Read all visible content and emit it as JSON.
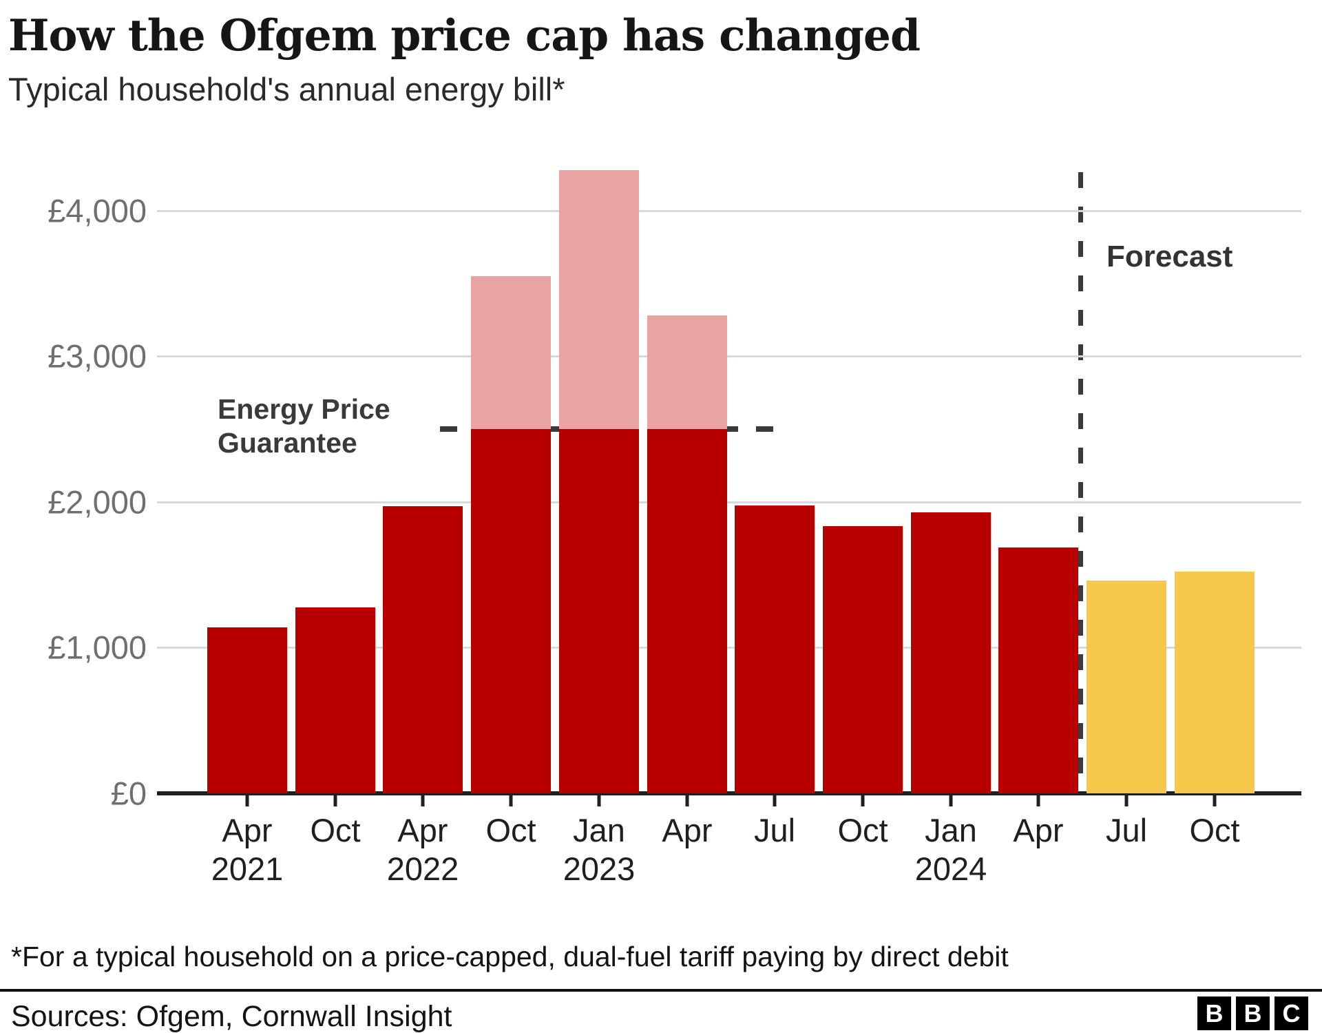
{
  "header": {
    "title": "How the Ofgem price cap has changed",
    "subtitle": "Typical household's annual energy bill*"
  },
  "chart_data": {
    "type": "bar",
    "title": "How the Ofgem price cap has changed",
    "subtitle": "Typical household's annual energy bill*",
    "ylim": [
      0,
      4300
    ],
    "grid": "horizontal",
    "yticks": [
      {
        "value": 0,
        "label": "£0"
      },
      {
        "value": 1000,
        "label": "£1,000"
      },
      {
        "value": 2000,
        "label": "£2,000"
      },
      {
        "value": 3000,
        "label": "£3,000"
      },
      {
        "value": 4000,
        "label": "£4,000"
      }
    ],
    "points": [
      {
        "month": "Apr",
        "year": "2021",
        "cap": 1138,
        "charged": 1138,
        "status": "actual"
      },
      {
        "month": "Oct",
        "cap": 1277,
        "charged": 1277,
        "status": "actual"
      },
      {
        "month": "Apr",
        "year": "2022",
        "cap": 1971,
        "charged": 1971,
        "status": "actual"
      },
      {
        "month": "Oct",
        "cap": 3549,
        "charged": 2500,
        "status": "actual",
        "epg_capped": true
      },
      {
        "month": "Jan",
        "year": "2023",
        "cap": 4279,
        "charged": 2500,
        "status": "actual",
        "epg_capped": true
      },
      {
        "month": "Apr",
        "cap": 3280,
        "charged": 2500,
        "status": "actual",
        "epg_capped": true
      },
      {
        "month": "Jul",
        "cap": 1976,
        "charged": 1976,
        "status": "actual"
      },
      {
        "month": "Oct",
        "cap": 1834,
        "charged": 1834,
        "status": "actual"
      },
      {
        "month": "Jan",
        "year": "2024",
        "cap": 1928,
        "charged": 1928,
        "status": "actual"
      },
      {
        "month": "Apr",
        "cap": 1690,
        "charged": 1690,
        "status": "actual"
      },
      {
        "month": "Jul",
        "cap": 1462,
        "charged": 1462,
        "status": "forecast"
      },
      {
        "month": "Oct",
        "cap": 1521,
        "charged": 1521,
        "status": "forecast"
      }
    ],
    "annotations": {
      "epg_line": {
        "value": 2500,
        "label": "Energy Price\nGuarantee"
      },
      "forecast_divider": {
        "before_index": 10,
        "label": "Forecast"
      }
    },
    "legend_position": "none",
    "colors": {
      "actual": "#B80000",
      "cap_excess": "#EAA3A3",
      "forecast": "#F6C84C",
      "annotation": "#3A3A3A",
      "gridline": "#D9D9D9",
      "axis": "#1F1F1F",
      "y_tick_label": "#6E6E73"
    }
  },
  "footer": {
    "footnote": "*For a typical household on a price-capped, dual-fuel tariff paying by direct debit",
    "sources": "Sources: Ofgem, Cornwall Insight",
    "logo_letters": [
      "B",
      "B",
      "C"
    ]
  }
}
